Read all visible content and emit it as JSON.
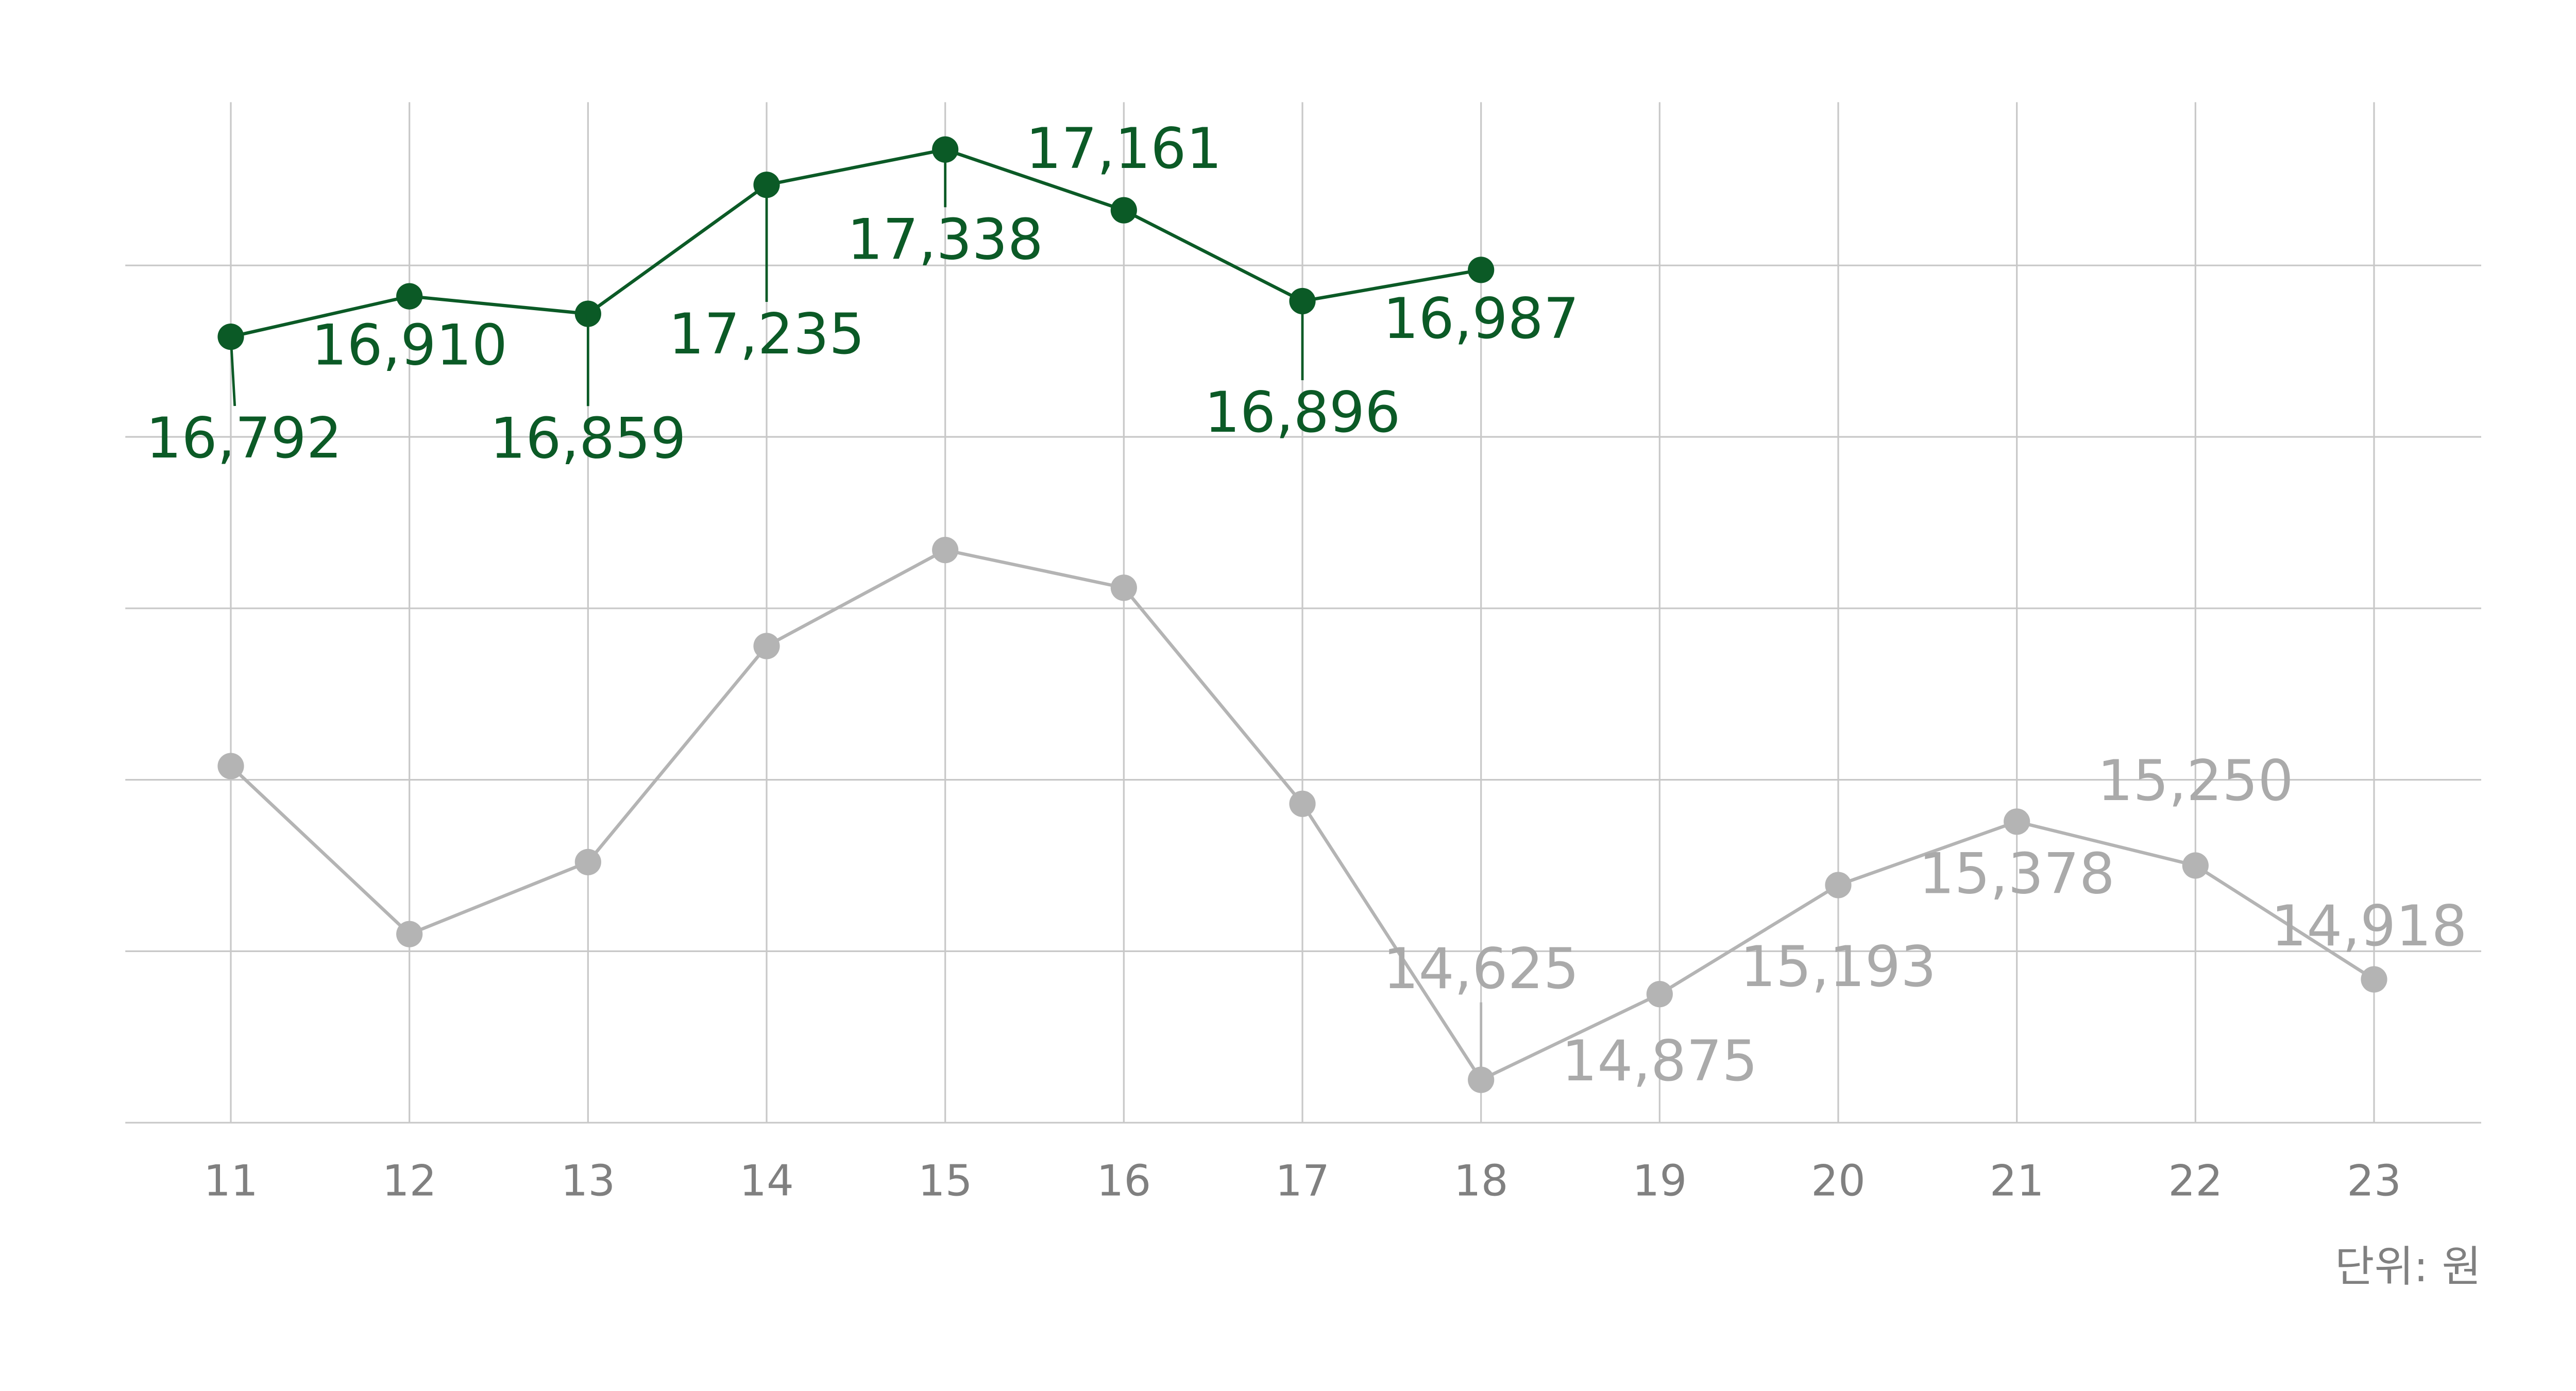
{
  "chart_data": {
    "type": "line",
    "categories": [
      "11",
      "12",
      "13",
      "14",
      "15",
      "16",
      "17",
      "18",
      "19",
      "20",
      "21",
      "22",
      "23"
    ],
    "series": [
      {
        "color": "#0b5a26",
        "values": [
          16792,
          16910,
          16859,
          17235,
          17338,
          17161,
          16896,
          16987,
          null,
          null,
          null,
          null,
          null
        ],
        "value_labels": [
          "16,792",
          "16,910",
          "16,859",
          "17,235",
          "17,338",
          "17,161",
          "16,896",
          "16,987",
          null,
          null,
          null,
          null,
          null
        ]
      },
      {
        "color": "#b4b4b4",
        "values": [
          15540,
          15050,
          15260,
          15890,
          16170,
          16060,
          15430,
          14625,
          14875,
          15193,
          15378,
          15250,
          14918
        ],
        "value_labels": [
          null,
          null,
          null,
          null,
          null,
          null,
          null,
          "14,625",
          "14,875",
          "15,193",
          "15,378",
          "15,250",
          "14,918"
        ]
      }
    ],
    "ylim": [
      14500,
      17500
    ],
    "yticks": [
      14500,
      15000,
      15500,
      16000,
      16500,
      17000
    ],
    "grid": true,
    "annotation": "단위: 원"
  }
}
